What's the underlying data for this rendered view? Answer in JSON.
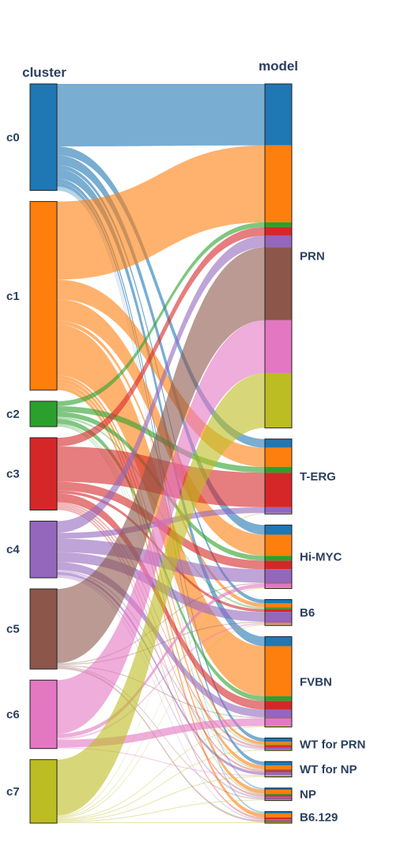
{
  "chart_data": {
    "type": "sankey",
    "dimensions": [
      {
        "label": "cluster",
        "categories": [
          "c0",
          "c1",
          "c2",
          "c3",
          "c4",
          "c5",
          "c6",
          "c7"
        ]
      },
      {
        "label": "model",
        "categories": [
          "PRN",
          "T-ERG",
          "Hi-MYC",
          "B6",
          "FVBN",
          "WT for PRN",
          "WT for NP",
          "NP",
          "B6.129"
        ]
      }
    ],
    "cluster_colors": {
      "c0": "#1f77b4",
      "c1": "#ff7f0e",
      "c2": "#2ca02c",
      "c3": "#d62728",
      "c4": "#9467bd",
      "c5": "#8c564b",
      "c6": "#e377c2",
      "c7": "#bcbd22"
    },
    "flows": [
      {
        "from": "c0",
        "to": "PRN",
        "value": 64
      },
      {
        "from": "c0",
        "to": "T-ERG",
        "value": 9
      },
      {
        "from": "c0",
        "to": "Hi-MYC",
        "value": 10
      },
      {
        "from": "c0",
        "to": "B6",
        "value": 4
      },
      {
        "from": "c0",
        "to": "FVBN",
        "value": 10
      },
      {
        "from": "c0",
        "to": "WT for PRN",
        "value": 4
      },
      {
        "from": "c0",
        "to": "WT for NP",
        "value": 4
      },
      {
        "from": "c0",
        "to": "NP",
        "value": 2
      },
      {
        "from": "c0",
        "to": "B6.129",
        "value": 2
      },
      {
        "from": "c1",
        "to": "PRN",
        "value": 80
      },
      {
        "from": "c1",
        "to": "T-ERG",
        "value": 20
      },
      {
        "from": "c1",
        "to": "Hi-MYC",
        "value": 22
      },
      {
        "from": "c1",
        "to": "B6",
        "value": 4
      },
      {
        "from": "c1",
        "to": "FVBN",
        "value": 52
      },
      {
        "from": "c1",
        "to": "WT for PRN",
        "value": 3
      },
      {
        "from": "c1",
        "to": "WT for NP",
        "value": 4
      },
      {
        "from": "c1",
        "to": "NP",
        "value": 4
      },
      {
        "from": "c1",
        "to": "B6.129",
        "value": 4
      },
      {
        "from": "c2",
        "to": "PRN",
        "value": 5
      },
      {
        "from": "c2",
        "to": "T-ERG",
        "value": 6
      },
      {
        "from": "c2",
        "to": "Hi-MYC",
        "value": 5
      },
      {
        "from": "c2",
        "to": "B6",
        "value": 2
      },
      {
        "from": "c2",
        "to": "FVBN",
        "value": 5
      },
      {
        "from": "c2",
        "to": "WT for PRN",
        "value": 1
      },
      {
        "from": "c2",
        "to": "WT for NP",
        "value": 1
      },
      {
        "from": "c2",
        "to": "NP",
        "value": 1
      },
      {
        "from": "c3",
        "to": "PRN",
        "value": 9
      },
      {
        "from": "c3",
        "to": "T-ERG",
        "value": 36
      },
      {
        "from": "c3",
        "to": "Hi-MYC",
        "value": 9
      },
      {
        "from": "c3",
        "to": "B6",
        "value": 3
      },
      {
        "from": "c3",
        "to": "FVBN",
        "value": 9
      },
      {
        "from": "c3",
        "to": "WT for PRN",
        "value": 2
      },
      {
        "from": "c3",
        "to": "WT for NP",
        "value": 2
      },
      {
        "from": "c3",
        "to": "NP",
        "value": 2
      },
      {
        "from": "c3",
        "to": "B6.129",
        "value": 2
      },
      {
        "from": "c4",
        "to": "PRN",
        "value": 12
      },
      {
        "from": "c4",
        "to": "T-ERG",
        "value": 6
      },
      {
        "from": "c4",
        "to": "Hi-MYC",
        "value": 14
      },
      {
        "from": "c4",
        "to": "B6",
        "value": 10
      },
      {
        "from": "c4",
        "to": "FVBN",
        "value": 8
      },
      {
        "from": "c4",
        "to": "WT for PRN",
        "value": 2
      },
      {
        "from": "c4",
        "to": "WT for NP",
        "value": 3
      },
      {
        "from": "c4",
        "to": "NP",
        "value": 2
      },
      {
        "from": "c4",
        "to": "B6.129",
        "value": 1
      },
      {
        "from": "c5",
        "to": "PRN",
        "value": 76
      },
      {
        "from": "c5",
        "to": "Hi-MYC",
        "value": 1
      },
      {
        "from": "c5",
        "to": "B6",
        "value": 1
      },
      {
        "from": "c5",
        "to": "FVBN",
        "value": 1
      },
      {
        "from": "c5",
        "to": "NP",
        "value": 1
      },
      {
        "from": "c5",
        "to": "B6.129",
        "value": 2
      },
      {
        "from": "c6",
        "to": "PRN",
        "value": 55
      },
      {
        "from": "c6",
        "to": "Hi-MYC",
        "value": 4
      },
      {
        "from": "c6",
        "to": "B6",
        "value": 2
      },
      {
        "from": "c6",
        "to": "FVBN",
        "value": 8
      },
      {
        "from": "c6",
        "to": "WT for NP",
        "value": 1
      },
      {
        "from": "c7",
        "to": "PRN",
        "value": 57
      },
      {
        "from": "c7",
        "to": "T-ERG",
        "value": 1
      },
      {
        "from": "c7",
        "to": "Hi-MYC",
        "value": 1
      },
      {
        "from": "c7",
        "to": "B6",
        "value": 1
      },
      {
        "from": "c7",
        "to": "FVBN",
        "value": 1
      },
      {
        "from": "c7",
        "to": "WT for PRN",
        "value": 1
      },
      {
        "from": "c7",
        "to": "WT for NP",
        "value": 1
      },
      {
        "from": "c7",
        "to": "NP",
        "value": 1
      },
      {
        "from": "c7",
        "to": "B6.129",
        "value": 1
      }
    ]
  }
}
